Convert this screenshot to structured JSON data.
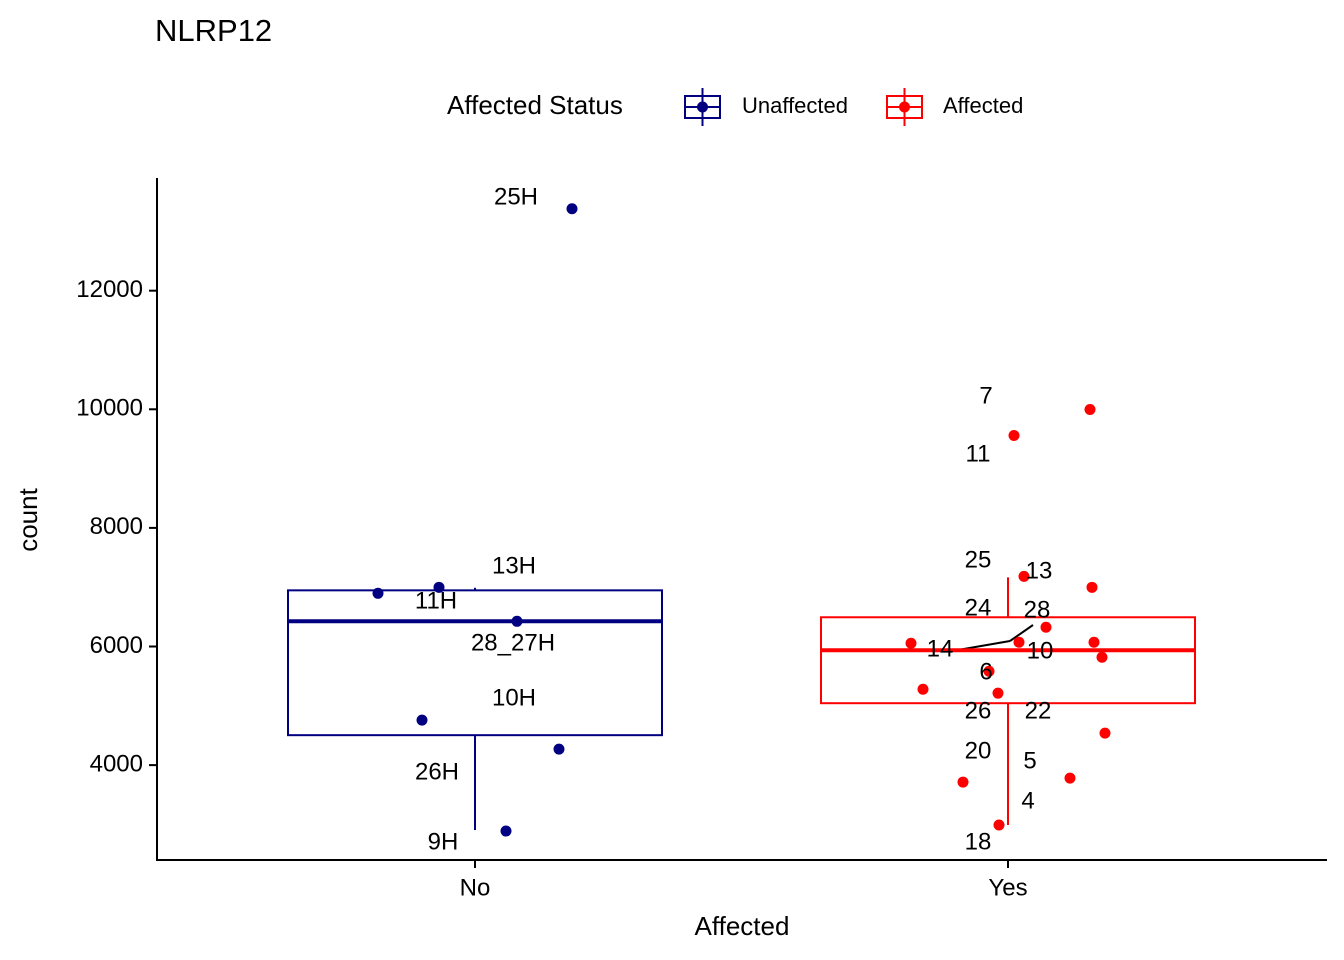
{
  "chart_data": {
    "type": "box",
    "title": "NLRP12",
    "x_label": "Affected",
    "y_label": "count",
    "legend_title": "Affected Status",
    "legend_position": "top",
    "categories": [
      "No",
      "Yes"
    ],
    "ylim": [
      2400,
      13900
    ],
    "yticks": [
      4000,
      6000,
      8000,
      10000,
      12000
    ],
    "series": [
      {
        "name": "Unaffected",
        "color": "#000080",
        "box": {
          "whisker_low": 2905,
          "q1": 4505,
          "median": 6425,
          "q3": 6947,
          "whisker_high": 6990
        },
        "values": [
          13381,
          6998,
          6897,
          6425,
          4758,
          4269,
          2888
        ],
        "point_labels": [
          "25H",
          "13H",
          "11H",
          "28_27H",
          "10H",
          "26H",
          "9H"
        ]
      },
      {
        "name": "Affected",
        "color": "#ff0000",
        "box": {
          "whisker_low": 2990,
          "q1": 5044,
          "median": 5937,
          "q3": 6493,
          "whisker_high": 7166
        },
        "values": [
          9996,
          9558,
          7183,
          6998,
          6324,
          6055,
          6072,
          6072,
          5819,
          5583,
          5280,
          5213,
          4539,
          3714,
          3781,
          2990
        ],
        "point_labels": [
          "7",
          "11",
          "13",
          "25",
          "28",
          "24",
          "14",
          "10",
          null,
          "6",
          "26",
          "22",
          "5",
          "20",
          "4",
          "18"
        ]
      }
    ]
  }
}
